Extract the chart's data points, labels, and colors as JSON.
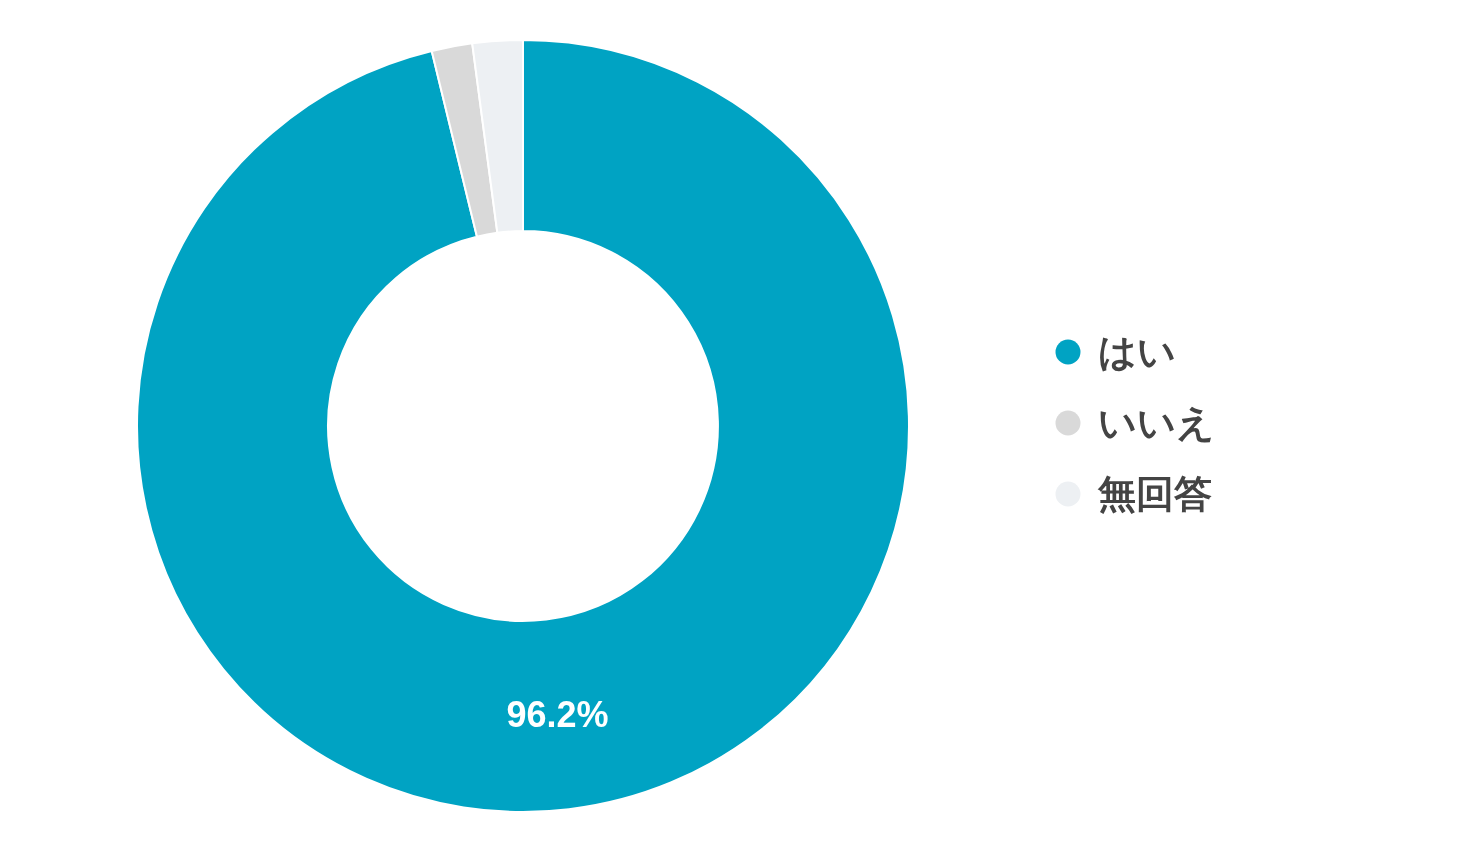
{
  "chart_data": {
    "type": "donut",
    "categories": [
      "はい",
      "いいえ",
      "無回答"
    ],
    "values": [
      96.2,
      1.7,
      2.1
    ],
    "colors": [
      "#00a3c3",
      "#d9d9d9",
      "#edf0f3"
    ],
    "value_labels": [
      "96.2%",
      null,
      null
    ],
    "legend": "right"
  }
}
